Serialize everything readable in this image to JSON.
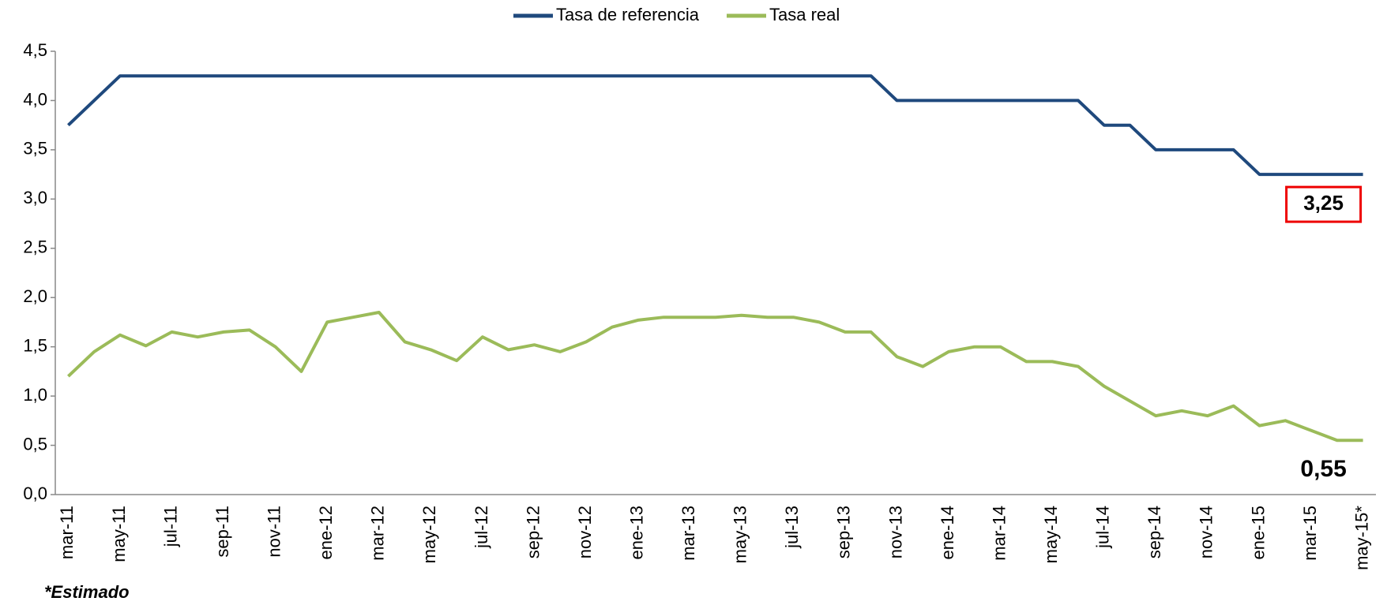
{
  "chart_data": {
    "type": "line",
    "note": "*Estimado",
    "categories": [
      "mar-11",
      null,
      "may-11",
      null,
      "jul-11",
      null,
      "sep-11",
      null,
      "nov-11",
      null,
      "ene-12",
      null,
      "mar-12",
      null,
      "may-12",
      null,
      "jul-12",
      null,
      "sep-12",
      null,
      "nov-12",
      null,
      "ene-13",
      null,
      "mar-13",
      null,
      "may-13",
      null,
      "jul-13",
      null,
      "sep-13",
      null,
      "nov-13",
      null,
      "ene-14",
      null,
      "mar-14",
      null,
      "may-14",
      null,
      "jul-14",
      null,
      "sep-14",
      null,
      "nov-14",
      null,
      "ene-15",
      null,
      "mar-15",
      null,
      "may-15*"
    ],
    "series": [
      {
        "name": "Tasa de referencia",
        "color": "#1f497d",
        "values": [
          3.75,
          4.0,
          4.25,
          4.25,
          4.25,
          4.25,
          4.25,
          4.25,
          4.25,
          4.25,
          4.25,
          4.25,
          4.25,
          4.25,
          4.25,
          4.25,
          4.25,
          4.25,
          4.25,
          4.25,
          4.25,
          4.25,
          4.25,
          4.25,
          4.25,
          4.25,
          4.25,
          4.25,
          4.25,
          4.25,
          4.25,
          4.25,
          4.0,
          4.0,
          4.0,
          4.0,
          4.0,
          4.0,
          4.0,
          4.0,
          3.75,
          3.75,
          3.5,
          3.5,
          3.5,
          3.5,
          3.25,
          3.25,
          3.25,
          3.25,
          3.25
        ],
        "value_labels": [
          null,
          null,
          null,
          null,
          null,
          null,
          null,
          null,
          null,
          null,
          null,
          null,
          null,
          null,
          null,
          null,
          null,
          null,
          null,
          null,
          null,
          null,
          null,
          null,
          null,
          null,
          null,
          null,
          null,
          null,
          null,
          null,
          null,
          null,
          null,
          null,
          null,
          null,
          null,
          null,
          null,
          null,
          null,
          null,
          null,
          null,
          null,
          null,
          null,
          null,
          "3,25"
        ]
      },
      {
        "name": "Tasa real",
        "color": "#9bbb59",
        "values": [
          1.2,
          1.45,
          1.62,
          1.51,
          1.65,
          1.6,
          1.65,
          1.67,
          1.5,
          1.25,
          1.75,
          1.8,
          1.85,
          1.55,
          1.47,
          1.36,
          1.6,
          1.47,
          1.52,
          1.45,
          1.55,
          1.7,
          1.77,
          1.8,
          1.8,
          1.8,
          1.82,
          1.8,
          1.8,
          1.75,
          1.65,
          1.65,
          1.4,
          1.3,
          1.45,
          1.5,
          1.5,
          1.35,
          1.35,
          1.3,
          1.1,
          0.95,
          0.8,
          0.85,
          0.8,
          0.9,
          0.7,
          0.75,
          0.65,
          0.55,
          0.55
        ],
        "value_labels": [
          null,
          null,
          null,
          null,
          null,
          null,
          null,
          null,
          null,
          null,
          null,
          null,
          null,
          null,
          null,
          null,
          null,
          null,
          null,
          null,
          null,
          null,
          null,
          null,
          null,
          null,
          null,
          null,
          null,
          null,
          null,
          null,
          null,
          null,
          null,
          null,
          null,
          null,
          null,
          null,
          null,
          null,
          null,
          null,
          null,
          null,
          null,
          null,
          null,
          null,
          "0,55"
        ]
      }
    ],
    "ylim": [
      0,
      4.5
    ],
    "yticks": [
      {
        "value": 0,
        "label": "0,0"
      },
      {
        "value": 0.5,
        "label": "0,5"
      },
      {
        "value": 1,
        "label": "1,0"
      },
      {
        "value": 1.5,
        "label": "1,5"
      },
      {
        "value": 2,
        "label": "2,0"
      },
      {
        "value": 2.5,
        "label": "2,5"
      },
      {
        "value": 3,
        "label": "3,0"
      },
      {
        "value": 3.5,
        "label": "3,5"
      },
      {
        "value": 4,
        "label": "4,0"
      },
      {
        "value": 4.5,
        "label": "4,5"
      }
    ],
    "grid": false,
    "legend": "top"
  }
}
